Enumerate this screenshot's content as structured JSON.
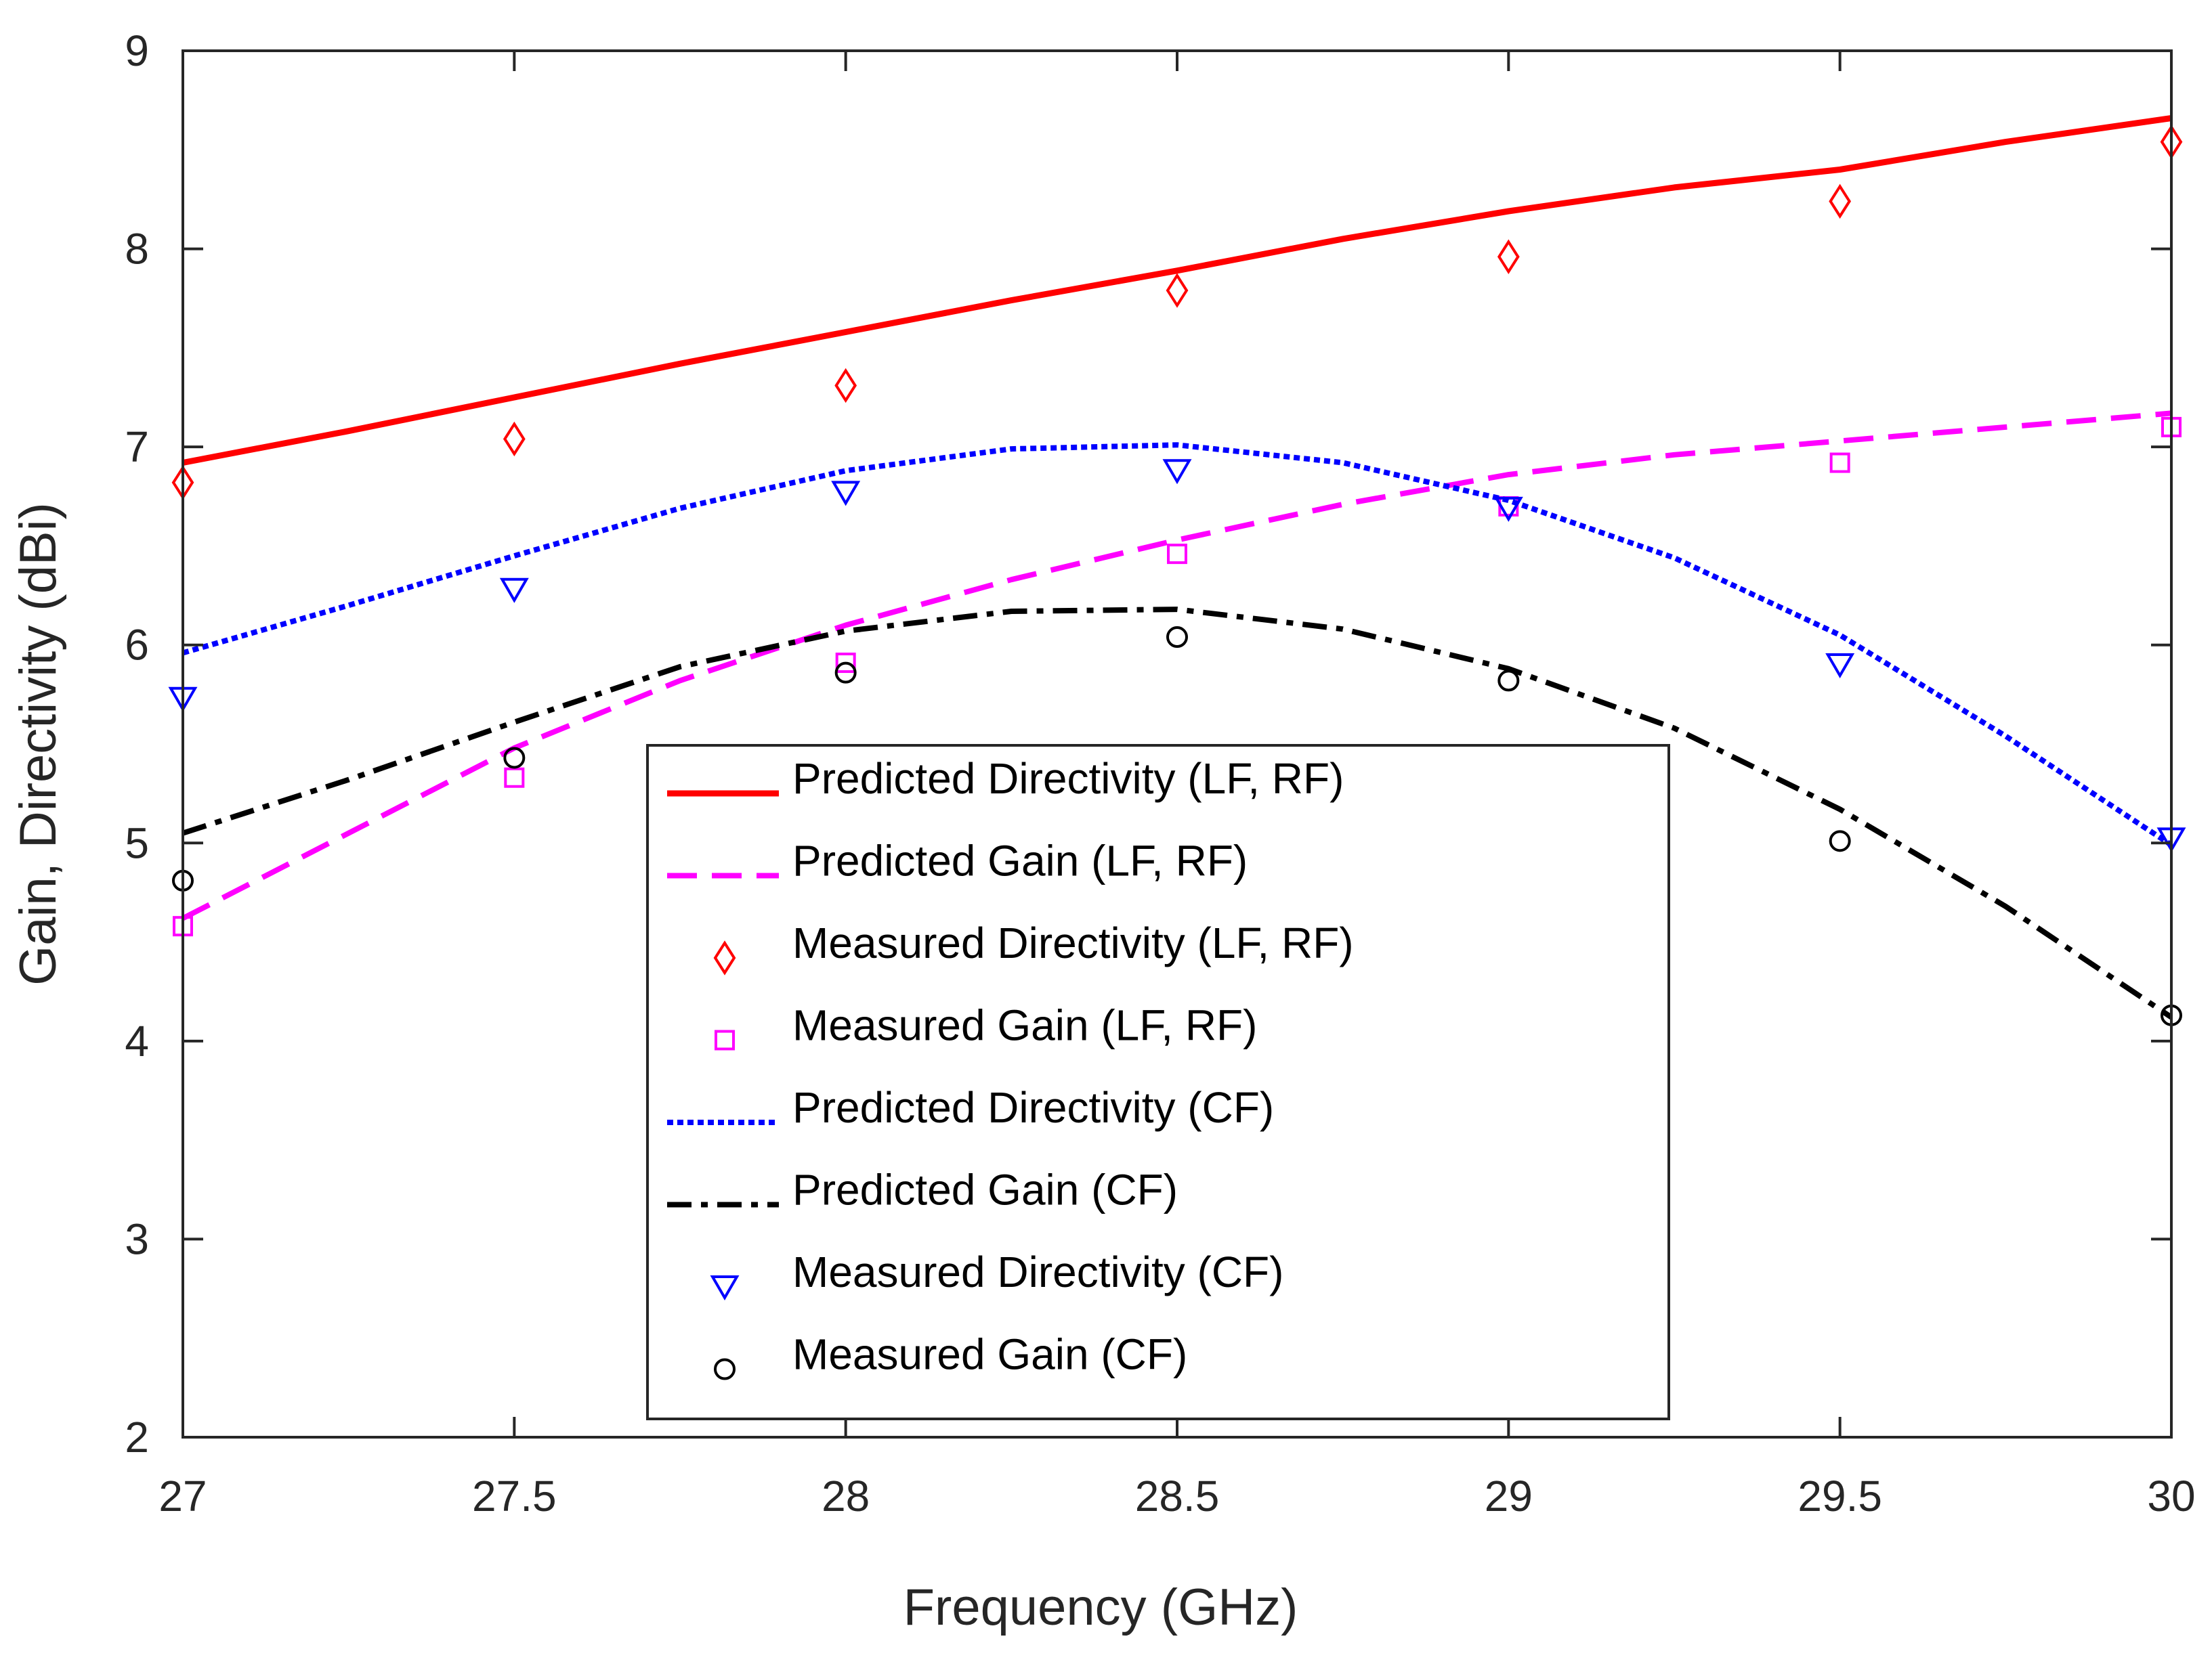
{
  "chart_data": {
    "type": "line",
    "title": "",
    "xlabel": "Frequency (GHz)",
    "ylabel": "Gain, Directivity (dBi)",
    "xlim": [
      27,
      30
    ],
    "ylim": [
      2,
      9
    ],
    "xticks": [
      27,
      27.5,
      28,
      28.5,
      29,
      29.5,
      30
    ],
    "xtick_labels": [
      "27",
      "27.5",
      "28",
      "28.5",
      "29",
      "29.5",
      "30"
    ],
    "yticks": [
      2,
      3,
      4,
      5,
      6,
      7,
      8,
      9
    ],
    "ytick_labels": [
      "2",
      "3",
      "4",
      "5",
      "6",
      "7",
      "8",
      "9"
    ],
    "grid": false,
    "legend_position": "center",
    "series": [
      {
        "name": "Predicted Directivity (LF, RF)",
        "kind": "line",
        "dash": "solid",
        "color": "#ff0000",
        "x": [
          27,
          27.25,
          27.5,
          27.75,
          28,
          28.25,
          28.5,
          28.75,
          29,
          29.25,
          29.5,
          29.75,
          30
        ],
        "y": [
          6.92,
          7.08,
          7.25,
          7.42,
          7.58,
          7.74,
          7.89,
          8.05,
          8.19,
          8.31,
          8.4,
          8.54,
          8.66
        ]
      },
      {
        "name": "Predicted Gain (LF, RF)",
        "kind": "line",
        "dash": "dashed",
        "color": "#ff00ff",
        "x": [
          27,
          27.25,
          27.5,
          27.75,
          28,
          28.25,
          28.5,
          28.75,
          29,
          29.25,
          29.5,
          29.75,
          30
        ],
        "y": [
          4.62,
          5.05,
          5.48,
          5.82,
          6.1,
          6.33,
          6.53,
          6.71,
          6.86,
          6.96,
          7.03,
          7.1,
          7.17
        ]
      },
      {
        "name": "Measured Directivity (LF, RF)",
        "kind": "marker",
        "marker": "diamond",
        "color": "#ff0000",
        "x": [
          27,
          27.5,
          28,
          28.5,
          29,
          29.5,
          30
        ],
        "y": [
          6.82,
          7.04,
          7.31,
          7.79,
          7.96,
          8.24,
          8.54
        ]
      },
      {
        "name": "Measured Gain (LF, RF)",
        "kind": "marker",
        "marker": "square",
        "color": "#ff00ff",
        "x": [
          27,
          27.5,
          28,
          28.5,
          29,
          29.5,
          30
        ],
        "y": [
          4.58,
          5.33,
          5.91,
          6.46,
          6.7,
          6.92,
          7.1
        ]
      },
      {
        "name": "Predicted Directivity (CF)",
        "kind": "line",
        "dash": "dotted",
        "color": "#0000ff",
        "x": [
          27,
          27.25,
          27.5,
          27.75,
          28,
          28.25,
          28.5,
          28.75,
          29,
          29.25,
          29.5,
          29.75,
          30
        ],
        "y": [
          5.96,
          6.2,
          6.45,
          6.69,
          6.88,
          6.99,
          7.01,
          6.92,
          6.73,
          6.44,
          6.05,
          5.54,
          4.99
        ]
      },
      {
        "name": "Predicted Gain (CF)",
        "kind": "line",
        "dash": "dashdot",
        "color": "#000000",
        "x": [
          27,
          27.25,
          27.5,
          27.75,
          28,
          28.25,
          28.5,
          28.75,
          29,
          29.25,
          29.5,
          29.75,
          30
        ],
        "y": [
          5.05,
          5.32,
          5.61,
          5.89,
          6.07,
          6.17,
          6.18,
          6.08,
          5.88,
          5.58,
          5.17,
          4.68,
          4.12
        ]
      },
      {
        "name": "Measured Directivity (CF)",
        "kind": "marker",
        "marker": "triangle-down",
        "color": "#0000ff",
        "x": [
          27,
          27.5,
          28,
          28.5,
          29,
          29.5,
          30
        ],
        "y": [
          5.73,
          6.28,
          6.77,
          6.88,
          6.69,
          5.9,
          5.02
        ]
      },
      {
        "name": "Measured Gain (CF)",
        "kind": "marker",
        "marker": "circle",
        "color": "#000000",
        "x": [
          27,
          27.5,
          28,
          28.5,
          29,
          29.5,
          30
        ],
        "y": [
          4.81,
          5.43,
          5.86,
          6.04,
          5.82,
          5.01,
          4.13
        ]
      }
    ]
  }
}
